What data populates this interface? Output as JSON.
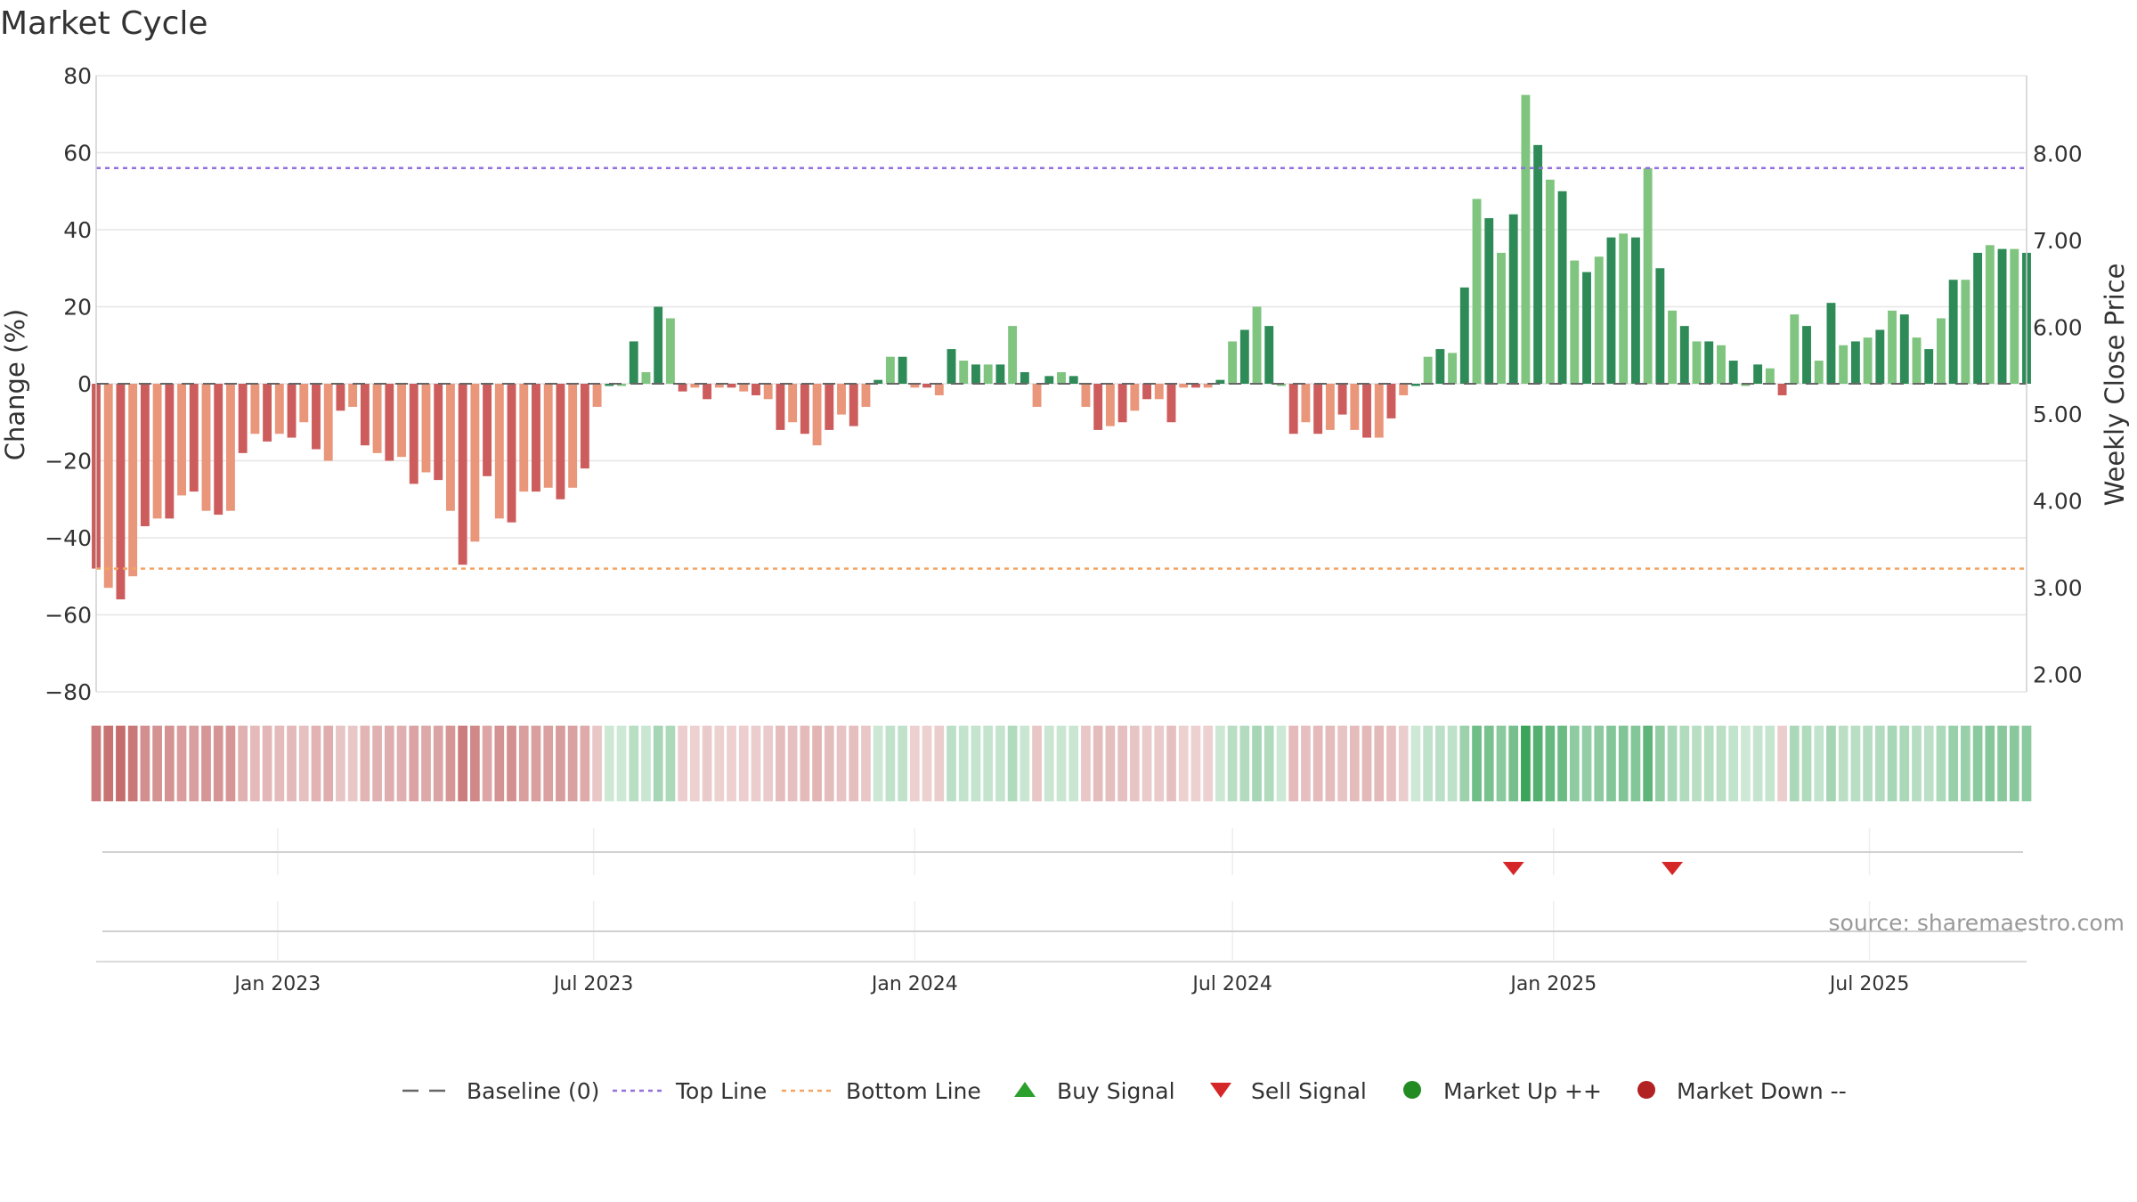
{
  "chart_data": {
    "type": "bar",
    "title": "Market Cycle",
    "ylabel": "Change (%)",
    "y2label": "Weekly Close Price",
    "ylim": [
      -80,
      80
    ],
    "y2lim": [
      1.8,
      8.9
    ],
    "yticks": [
      80,
      60,
      40,
      20,
      0,
      -20,
      -40,
      -60,
      -80
    ],
    "yticks_labels": [
      "80",
      "60",
      "40",
      "20",
      "0",
      "−20",
      "−40",
      "−60",
      "−80"
    ],
    "y2ticks": [
      8.0,
      7.0,
      6.0,
      5.0,
      4.0,
      3.0,
      2.0
    ],
    "y2ticks_labels": [
      "8.00",
      "7.00",
      "6.00",
      "5.00",
      "4.00",
      "3.00",
      "2.00"
    ],
    "x_start": "2022-09-19",
    "x_end": "2025-09-29",
    "week_start": "2022-09-19",
    "xticks": [
      {
        "date": "2023-01-01",
        "label": "Jan 2023"
      },
      {
        "date": "2023-07-01",
        "label": "Jul 2023"
      },
      {
        "date": "2024-01-01",
        "label": "Jan 2024"
      },
      {
        "date": "2024-07-01",
        "label": "Jul 2024"
      },
      {
        "date": "2025-01-01",
        "label": "Jan 2025"
      },
      {
        "date": "2025-07-01",
        "label": "Jul 2025"
      }
    ],
    "top_line": 56,
    "bottom_line": -48,
    "baseline": 0,
    "values": [
      -48,
      -53,
      -56,
      -50,
      -37,
      -35,
      -35,
      -29,
      -28,
      -33,
      -34,
      -33,
      -18,
      -13,
      -15,
      -13,
      -14,
      -10,
      -17,
      -20,
      -7,
      -6,
      -16,
      -18,
      -20,
      -19,
      -26,
      -23,
      -25,
      -33,
      -47,
      -41,
      -24,
      -35,
      -36,
      -28,
      -28,
      -27,
      -30,
      -27,
      -22,
      -6,
      0,
      0,
      11,
      3,
      20,
      17,
      -2,
      -1,
      -4,
      -1,
      -1,
      -2,
      -3,
      -4,
      -12,
      -10,
      -13,
      -16,
      -12,
      -8,
      -11,
      -6,
      1,
      7,
      7,
      -1,
      -1,
      -3,
      9,
      6,
      5,
      5,
      5,
      15,
      3,
      -6,
      2,
      3,
      2,
      -6,
      -12,
      -11,
      -10,
      -7,
      -4,
      -4,
      -10,
      -1,
      -1,
      -1,
      1,
      11,
      14,
      20,
      15,
      0,
      -13,
      -10,
      -13,
      -12,
      -8,
      -12,
      -14,
      -14,
      -9,
      -3,
      0,
      7,
      9,
      8,
      25,
      48,
      43,
      34,
      44,
      75,
      62,
      53,
      50,
      32,
      29,
      33,
      38,
      39,
      38,
      56,
      30,
      19,
      15,
      11,
      11,
      10,
      6,
      0,
      5,
      4,
      -3,
      18,
      15,
      6,
      21,
      10,
      11,
      12,
      14,
      19,
      18,
      12,
      9,
      17,
      27,
      27,
      34,
      36,
      35,
      35,
      34
    ],
    "sell_signals": [
      "2024-12-09",
      "2025-03-10"
    ],
    "buy_signals": [],
    "colors": {
      "up_dark": "#2e8b57",
      "up_light": "#7fc47f",
      "down_dark": "#cd5c5c",
      "down_light": "#e9967a",
      "top_line": "#9370db",
      "bottom_line": "#f4a460",
      "baseline": "#666666",
      "sell": "#d62728",
      "buy": "#2ca02c",
      "market_up": "#228b22",
      "market_down": "#b22222"
    }
  },
  "legend": {
    "items": [
      {
        "label": "Baseline (0)",
        "symbol": "dash",
        "color": "#666666"
      },
      {
        "label": "Top Line",
        "symbol": "dot",
        "color": "#9370db"
      },
      {
        "label": "Bottom Line",
        "symbol": "dot",
        "color": "#f4a460"
      },
      {
        "label": "Buy Signal",
        "symbol": "triangle-up",
        "color": "#2ca02c"
      },
      {
        "label": "Sell Signal",
        "symbol": "triangle-down",
        "color": "#d62728"
      },
      {
        "label": "Market Up ++",
        "symbol": "circle",
        "color": "#228b22"
      },
      {
        "label": "Market Down --",
        "symbol": "circle",
        "color": "#b22222"
      }
    ]
  },
  "source": "source: sharemaestro.com"
}
